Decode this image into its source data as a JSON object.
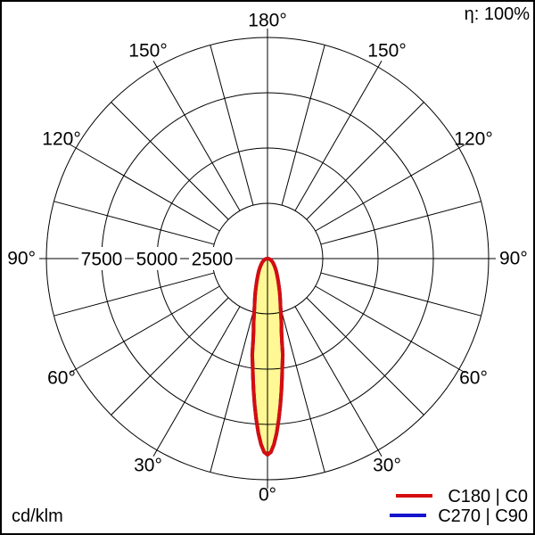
{
  "header": {
    "efficiency_label": "η: 100%"
  },
  "footer": {
    "unit_label": "cd/klm"
  },
  "legend": [
    {
      "label": "C180 | C0",
      "color": "#D60D0D"
    },
    {
      "label": "C270 | C90",
      "color": "#1414CC"
    }
  ],
  "polar_axis": {
    "angle_labels": {
      "a0": "0°",
      "a30": "30°",
      "a60": "60°",
      "a90": "90°",
      "a120": "120°",
      "a150": "150°",
      "a180": "180°"
    },
    "ring_labels": {
      "r2500": "2500",
      "r5000": "5000",
      "r7500": "7500"
    }
  },
  "chart_data": {
    "type": "polar",
    "unit": "cd/klm",
    "efficiency_percent": 100,
    "ring_values": [
      2500,
      5000,
      7500,
      10000
    ],
    "ring_labeled": [
      2500,
      5000,
      7500
    ],
    "radial_max": 10000,
    "angle_label_step_deg": 30,
    "grid_spoke_step_deg": 15,
    "legend_position": "bottom-right",
    "fill": "#FFF894",
    "gamma_deg": [
      0,
      1,
      2,
      3,
      4,
      5,
      6,
      7,
      8,
      9,
      10,
      11,
      12,
      13,
      14,
      15,
      17.5,
      20,
      25,
      30,
      35,
      40,
      45,
      50,
      55,
      60,
      70,
      80,
      90
    ],
    "series": [
      {
        "name": "C180 | C0",
        "color": "#D60D0D",
        "visible": true,
        "values": [
          8870,
          8750,
          8400,
          7900,
          7300,
          6650,
          6000,
          5400,
          4850,
          4400,
          3750,
          3300,
          3050,
          2750,
          2500,
          2280,
          1900,
          1600,
          1150,
          870,
          680,
          540,
          430,
          350,
          290,
          230,
          150,
          70,
          0
        ]
      },
      {
        "name": "C270 | C90",
        "color": "#1414CC",
        "visible": true,
        "hidden_behind_primary": true,
        "values": [
          8870,
          8750,
          8400,
          7900,
          7300,
          6650,
          6000,
          5400,
          4850,
          4400,
          3750,
          3300,
          3050,
          2750,
          2500,
          2280,
          1900,
          1600,
          1150,
          870,
          680,
          540,
          430,
          350,
          290,
          230,
          150,
          70,
          0
        ]
      }
    ]
  }
}
